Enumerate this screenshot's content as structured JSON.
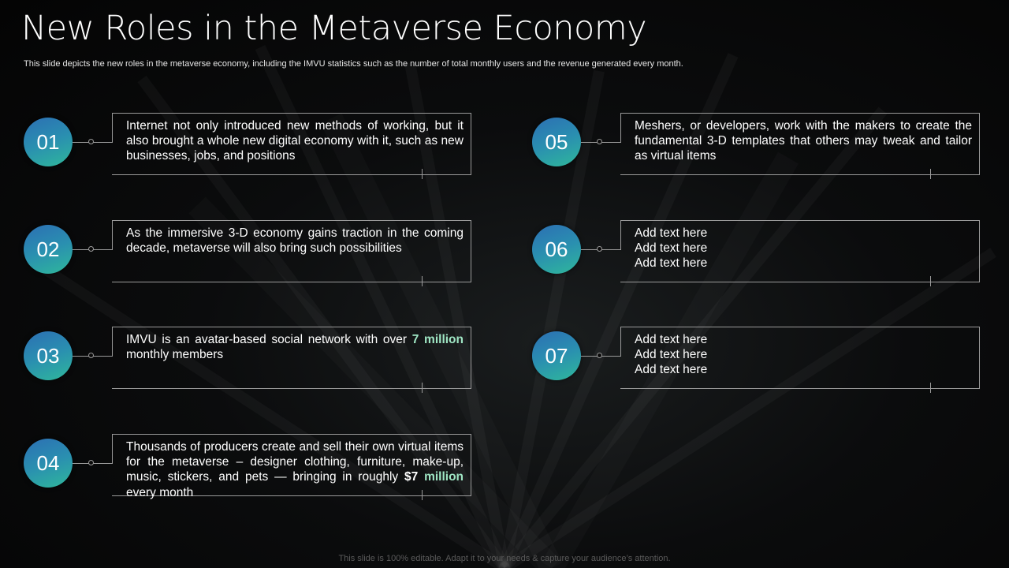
{
  "slide": {
    "title": "New Roles in the Metaverse Economy",
    "subtitle": "This slide depicts the new roles in the metaverse economy, including the IMVU statistics such as the number of total monthly users and the revenue generated every month.",
    "footer": "This slide is 100% editable. Adapt it to your needs & capture your audience’s attention."
  },
  "items": [
    {
      "number": "01",
      "text": "Internet  not only introduced new methods of working, but it also brought a whole new digital economy with it, such as new businesses, jobs, and positions"
    },
    {
      "number": "02",
      "text": "As the immersive 3-D economy gains traction in the coming decade, metaverse will also bring such possibilities"
    },
    {
      "number": "03",
      "text_before": "IMVU is an avatar-based social network with over ",
      "highlight": "7 million",
      "text_after": " monthly  members"
    },
    {
      "number": "04",
      "text_before": "Thousands  of producers create and sell their own virtual items for the metaverse – designer clothing, furniture,  make-up, music, stickers, and pets — bringing in roughly ",
      "highlight_white": "$7",
      "highlight": "million",
      "text_after": " every month"
    },
    {
      "number": "05",
      "text": "Meshers, or developers, work with the makers to create the fundamental 3-D templates that others may tweak and tailor as virtual items"
    },
    {
      "number": "06",
      "lines": [
        "Add text here",
        "Add text here",
        "Add text here"
      ]
    },
    {
      "number": "07",
      "lines": [
        "Add text here",
        "Add text here",
        "Add text here"
      ]
    }
  ],
  "colors": {
    "accent": "#9fe6c4",
    "circle_gradient_start": "#2c6fb4",
    "circle_gradient_end": "#2fb89b",
    "line": "#9a9a9a"
  }
}
